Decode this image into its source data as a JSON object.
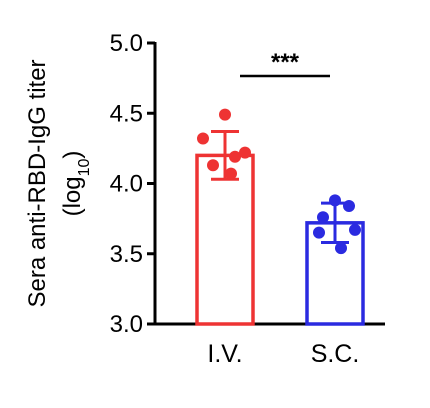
{
  "chart_data": {
    "type": "bar",
    "categories": [
      "I.V.",
      "S.C."
    ],
    "ylabel_line1": "Sera anti-RBD-IgG titer",
    "ylabel_line2_main": "(log",
    "ylabel_line2_sub": "10",
    "ylabel_line2_end": ")",
    "ylim": [
      3.0,
      5.0
    ],
    "yticks": [
      3.0,
      3.5,
      4.0,
      4.5,
      5.0
    ],
    "ytick_labels": [
      "3.0",
      "3.5",
      "4.0",
      "4.5",
      "5.0"
    ],
    "series": [
      {
        "category": "I.V.",
        "mean": 4.2,
        "sd": 0.17,
        "color": "#ee3333",
        "points": [
          4.49,
          4.32,
          4.19,
          4.22,
          4.13,
          4.07
        ]
      },
      {
        "category": "S.C.",
        "mean": 3.72,
        "sd": 0.14,
        "color": "#2a2ae0",
        "points": [
          3.88,
          3.84,
          3.76,
          3.67,
          3.65,
          3.54
        ]
      }
    ],
    "significance": "***",
    "grid": false,
    "legend": "none"
  }
}
